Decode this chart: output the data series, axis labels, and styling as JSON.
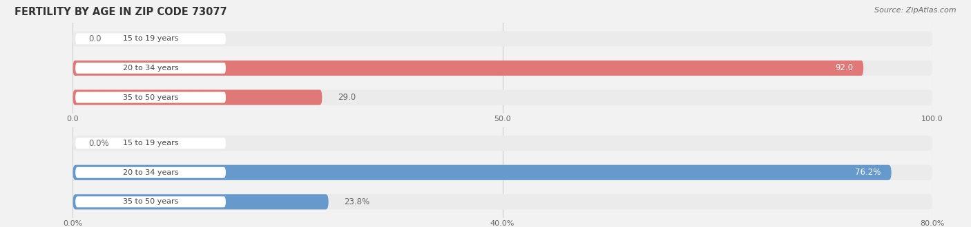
{
  "title": "FERTILITY BY AGE IN ZIP CODE 73077",
  "source": "Source: ZipAtlas.com",
  "top_chart": {
    "categories": [
      "15 to 19 years",
      "20 to 34 years",
      "35 to 50 years"
    ],
    "values": [
      0.0,
      92.0,
      29.0
    ],
    "x_max": 100.0,
    "x_ticks": [
      0.0,
      50.0,
      100.0
    ],
    "x_tick_labels": [
      "0.0",
      "50.0",
      "100.0"
    ],
    "bar_color": "#e07878",
    "bar_light_color": "#f0b0b0",
    "bar_bg_color": "#ebebeb"
  },
  "bottom_chart": {
    "categories": [
      "15 to 19 years",
      "20 to 34 years",
      "35 to 50 years"
    ],
    "values": [
      0.0,
      76.2,
      23.8
    ],
    "x_max": 80.0,
    "x_ticks": [
      0.0,
      40.0,
      80.0
    ],
    "x_tick_labels": [
      "0.0%",
      "40.0%",
      "80.0%"
    ],
    "bar_color": "#6699cc",
    "bar_light_color": "#99bbdd",
    "bar_bg_color": "#ebebeb"
  },
  "fig_bg_color": "#f2f2f2",
  "label_box_color": "#ffffff",
  "label_text_color": "#444444",
  "value_inside_color": "#ffffff",
  "value_outside_color": "#666666",
  "title_fontsize": 10.5,
  "source_fontsize": 8,
  "tick_fontsize": 8,
  "cat_fontsize": 8,
  "val_fontsize": 8.5
}
